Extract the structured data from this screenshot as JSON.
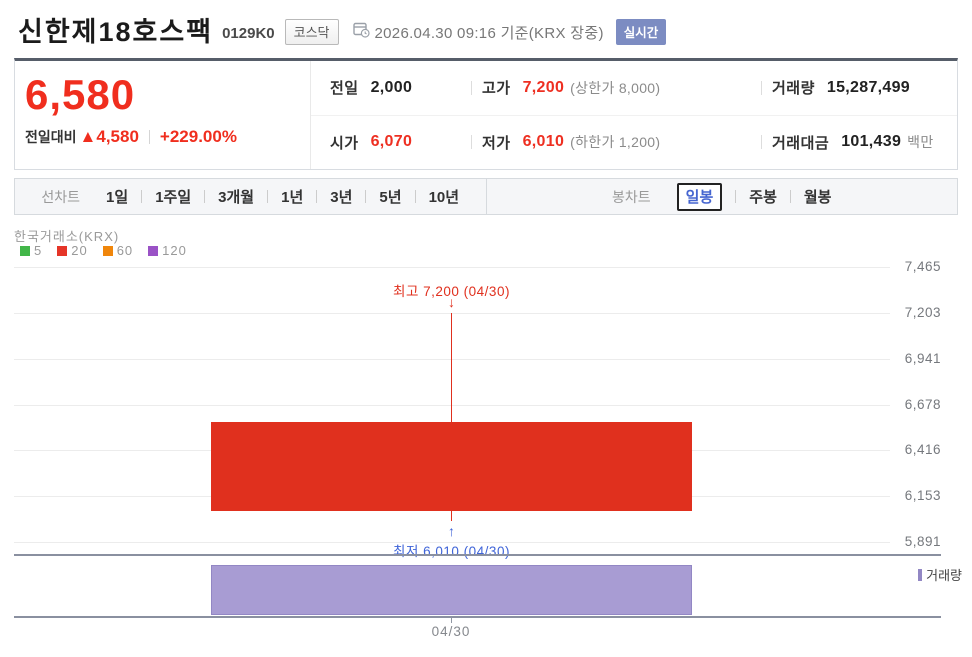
{
  "header": {
    "title": "신한제18호스팩",
    "ticker": "0129K0",
    "market_badge": "코스닥",
    "timestamp": "2026.04.30 09:16",
    "timestamp_suffix": "기준(KRX 장중)",
    "realtime_badge": "실시간"
  },
  "quote": {
    "price": "6,580",
    "change_label": "전일대비",
    "change_arrow": "▲",
    "change_value": "4,580",
    "change_percent": "+229.00%",
    "prev_label": "전일",
    "prev_value": "2,000",
    "high_label": "고가",
    "high_value": "7,200",
    "high_extra": "(상한가 8,000)",
    "volume_label": "거래량",
    "volume_value": "15,287,499",
    "open_label": "시가",
    "open_value": "6,070",
    "low_label": "저가",
    "low_value": "6,010",
    "low_extra": "(하한가 1,200)",
    "amount_label": "거래대금",
    "amount_value": "101,439",
    "amount_unit": "백만"
  },
  "toolbar": {
    "line_label": "선차트",
    "line_items": [
      "1일",
      "1주일",
      "3개월",
      "1년",
      "3년",
      "5년",
      "10년"
    ],
    "candle_label": "봉차트",
    "candle_items": [
      {
        "label": "일봉",
        "selected": true
      },
      {
        "label": "주봉",
        "selected": false
      },
      {
        "label": "월봉",
        "selected": false
      }
    ]
  },
  "chart_data": {
    "type": "candlestick",
    "exchange_label": "한국거래소(KRX)",
    "ma_legend": [
      {
        "period": "5",
        "color": "#42b649"
      },
      {
        "period": "20",
        "color": "#e53528"
      },
      {
        "period": "60",
        "color": "#f0860b"
      },
      {
        "period": "120",
        "color": "#9a52c6"
      }
    ],
    "x": [
      "04/30"
    ],
    "series": [
      {
        "date": "04/30",
        "open": 6070,
        "high": 7200,
        "low": 6010,
        "close": 6580,
        "volume": 15287499
      }
    ],
    "y_axis_ticks": [
      7465,
      7203,
      6941,
      6678,
      6416,
      6153,
      5891
    ],
    "annotations": {
      "high": {
        "text": "최고 7,200 (04/30)"
      },
      "low": {
        "text": "최저 6,010 (04/30)"
      }
    },
    "volume_legend": "거래량",
    "colors": {
      "up": "#e0301e",
      "annotation_high": "#e0301e",
      "annotation_low": "#3f64d8",
      "volume_bar": "#a89cd3",
      "volume_bar_border": "#9287c4"
    },
    "volume_bar_fraction": 0.85,
    "grid": true,
    "legend_position": "top-left"
  }
}
